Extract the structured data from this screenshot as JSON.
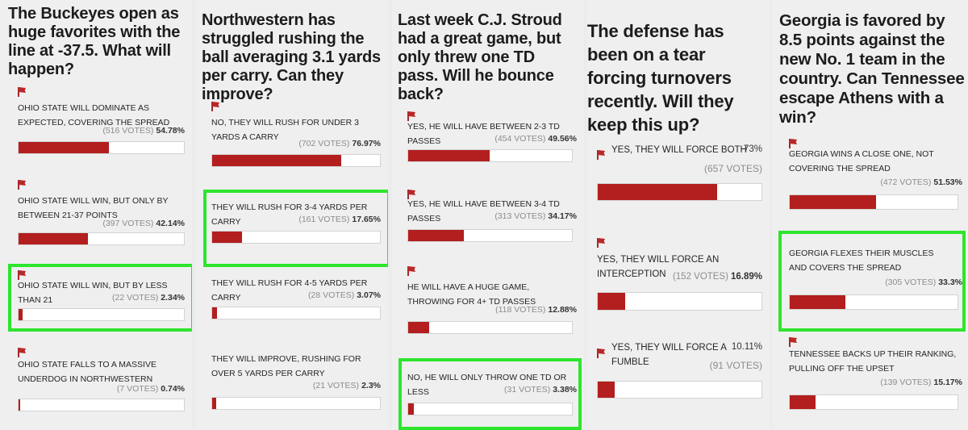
{
  "colors": {
    "fill": "#b31e1e",
    "highlight": "#2de52d"
  },
  "polls": [
    {
      "question": "The Buckeyes open as huge favorites with the line at -37.5. What will happen?",
      "options": [
        {
          "label": "OHIO STATE WILL DOMINATE AS EXPECTED, COVERING THE SPREAD",
          "votes": "(516 VOTES)",
          "pct": "54.78%",
          "fraction": 0.5478
        },
        {
          "label": "OHIO STATE WILL WIN, BUT ONLY BY BETWEEN 21-37 POINTS",
          "votes": "(397 VOTES)",
          "pct": "42.14%",
          "fraction": 0.4214
        },
        {
          "label": "OHIO STATE WILL WIN, BUT BY LESS THAN 21",
          "votes": "(22 VOTES)",
          "pct": "2.34%",
          "fraction": 0.0234,
          "highlighted": true
        },
        {
          "label": "OHIO STATE FALLS TO A MASSIVE UNDERDOG IN NORTHWESTERN",
          "votes": "(7 VOTES)",
          "pct": "0.74%",
          "fraction": 0.0074
        }
      ]
    },
    {
      "question": "Northwestern has struggled rushing the ball averaging 3.1 yards per carry. Can they improve?",
      "options": [
        {
          "label": "NO, THEY WILL RUSH FOR UNDER 3 YARDS A CARRY",
          "votes": "(702 VOTES)",
          "pct": "76.97%",
          "fraction": 0.7697
        },
        {
          "label": "THEY WILL RUSH FOR 3-4 YARDS PER CARRY",
          "votes": "(161 VOTES)",
          "pct": "17.65%",
          "fraction": 0.1765,
          "highlighted": true
        },
        {
          "label": "THEY WILL RUSH FOR 4-5 YARDS PER CARRY",
          "votes": "(28 VOTES)",
          "pct": "3.07%",
          "fraction": 0.0307
        },
        {
          "label": "THEY WILL IMPROVE, RUSHING FOR OVER 5 YARDS PER CARRY",
          "votes": "(21 VOTES)",
          "pct": "2.3%",
          "fraction": 0.023
        }
      ]
    },
    {
      "question": "Last week C.J. Stroud had a great game, but only threw one TD pass. Will he bounce back?",
      "options": [
        {
          "label": "YES, HE WILL HAVE BETWEEN 2-3 TD PASSES",
          "votes": "(454 VOTES)",
          "pct": "49.56%",
          "fraction": 0.4956
        },
        {
          "label": "YES, HE WILL HAVE BETWEEN 3-4 TD PASSES",
          "votes": "(313 VOTES)",
          "pct": "34.17%",
          "fraction": 0.3417
        },
        {
          "label": "HE WILL HAVE A HUGE GAME, THROWING FOR 4+ TD PASSES",
          "votes": "(118 VOTES)",
          "pct": "12.88%",
          "fraction": 0.1288
        },
        {
          "label": "NO, HE WILL ONLY THROW ONE TD OR LESS",
          "votes": "(31 VOTES)",
          "pct": "3.38%",
          "fraction": 0.0338,
          "highlighted": true
        }
      ]
    },
    {
      "question": "The defense has been on a tear forcing turnovers recently. Will they keep this up?",
      "options": [
        {
          "label": "YES, THEY WILL FORCE BOTH",
          "votes": "(657 VOTES)",
          "pct": "73%",
          "fraction": 0.73
        },
        {
          "label": "YES, THEY WILL FORCE AN INTERCEPTION",
          "votes": "(152 VOTES)",
          "pct": "16.89%",
          "fraction": 0.1689
        },
        {
          "label": "YES, THEY WILL FORCE A FUMBLE",
          "votes": "(91 VOTES)",
          "pct": "10.11%",
          "fraction": 0.1011
        }
      ]
    },
    {
      "question": "Georgia is favored by 8.5 points against the new No. 1 team in the country. Can Tennessee escape Athens with a win?",
      "options": [
        {
          "label": "GEORGIA WINS A CLOSE ONE, NOT COVERING THE SPREAD",
          "votes": "(472 VOTES)",
          "pct": "51.53%",
          "fraction": 0.5153
        },
        {
          "label": "GEORGIA FLEXES THEIR MUSCLES AND COVERS THE SPREAD",
          "votes": "(305 VOTES)",
          "pct": "33.3%",
          "fraction": 0.333,
          "highlighted": true
        },
        {
          "label": "TENNESSEE BACKS UP THEIR RANKING, PULLING OFF THE UPSET",
          "votes": "(139 VOTES)",
          "pct": "15.17%",
          "fraction": 0.1517
        }
      ]
    }
  ]
}
